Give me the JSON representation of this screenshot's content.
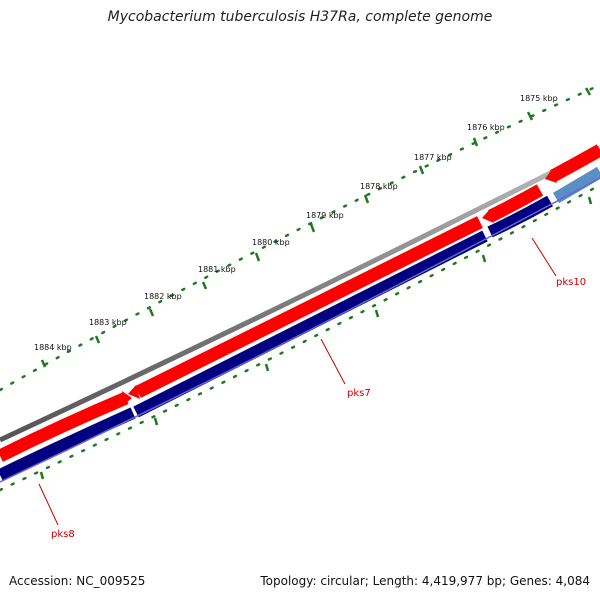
{
  "title": "Mycobacterium tuberculosis H37Ra, complete genome",
  "footer": {
    "accession": "Accession: NC_009525",
    "summary": "Topology: circular; Length: 4,419,977 bp; Genes: 4,084"
  },
  "scale_labels": [
    "1875 kbp",
    "1876 kbp",
    "1877 kbp",
    "1878 kbp",
    "1879 kbp",
    "1880 kbp",
    "1881 kbp",
    "1882 kbp",
    "1883 kbp",
    "1884 kbp"
  ],
  "genes": [
    {
      "name": "pks10"
    },
    {
      "name": "pks7"
    },
    {
      "name": "pks8"
    }
  ],
  "colors": {
    "backbone": "#7f7f7f",
    "forward_cds": "#ff0000",
    "reverse_gene": "#000080",
    "highlight_gene": "#5a8fc6",
    "ticks": "#1f7a1f",
    "gene_label": "#cc0000"
  }
}
